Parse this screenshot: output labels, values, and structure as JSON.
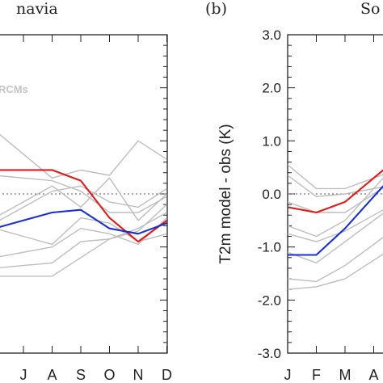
{
  "panel_a": {
    "title_fragment": "navia",
    "legend_fragment": "RCMs",
    "chart_data": {
      "type": "line",
      "title": "navia",
      "categories": [
        "J",
        "A",
        "S",
        "O",
        "N",
        "D"
      ],
      "ylim": [
        -3.0,
        3.0
      ],
      "reference_line": 0.0,
      "grid": false,
      "series": [
        {
          "name": "",
          "role": "obs-red",
          "color": "#dd1c1c",
          "values": [
            0.45,
            0.45,
            0.25,
            -0.45,
            -0.9,
            -0.5
          ]
        },
        {
          "name": "",
          "role": "obs-blue",
          "color": "#1a2fcf",
          "values": [
            -0.5,
            -0.35,
            -0.3,
            -0.65,
            -0.75,
            -0.55
          ]
        },
        {
          "name": "",
          "role": "rcm",
          "color": "#bdbdbd",
          "values": [
            0.75,
            0.3,
            0.45,
            0.35,
            1.0,
            0.65
          ]
        },
        {
          "name": "",
          "role": "rcm",
          "color": "#bdbdbd",
          "values": [
            -0.25,
            0.05,
            0.15,
            -0.15,
            -0.25,
            0.1
          ]
        },
        {
          "name": "",
          "role": "rcm",
          "color": "#bdbdbd",
          "values": [
            -1.35,
            -1.3,
            -0.9,
            -0.85,
            -0.7,
            -0.2
          ]
        },
        {
          "name": "",
          "role": "rcm",
          "color": "#bdbdbd",
          "values": [
            -0.8,
            -0.95,
            -0.45,
            -0.55,
            -0.9,
            -0.75
          ]
        },
        {
          "name": "",
          "role": "rcm",
          "color": "#bdbdbd",
          "values": [
            -1.55,
            -1.55,
            -1.2,
            -0.85,
            -0.65,
            -0.35
          ]
        },
        {
          "name": "",
          "role": "rcm",
          "color": "#bdbdbd",
          "values": [
            -0.15,
            0.15,
            -0.25,
            0.3,
            -0.5,
            0.0
          ]
        },
        {
          "name": "",
          "role": "rcm",
          "color": "#bdbdbd",
          "values": [
            -1.1,
            -1.0,
            -0.65,
            -0.75,
            -0.95,
            -0.45
          ]
        },
        {
          "name": "",
          "role": "rcm",
          "color": "#bdbdbd",
          "values": [
            0.3,
            0.25,
            0.05,
            -0.35,
            -0.35,
            -0.05
          ]
        }
      ]
    }
  },
  "panel_b": {
    "label": "(b)",
    "title_fragment": "So",
    "chart_data": {
      "type": "line",
      "title": "So",
      "ylabel": "T2m model - obs (K)",
      "categories": [
        "J",
        "F",
        "M",
        "A"
      ],
      "yticks": [
        "3.0",
        "2.0",
        "1.0",
        "0.0",
        "-1.0",
        "-2.0",
        "-3.0"
      ],
      "ylim": [
        -3.0,
        3.0
      ],
      "reference_line": 0.0,
      "grid": false,
      "series": [
        {
          "name": "",
          "role": "obs-red",
          "color": "#dd1c1c",
          "values": [
            -0.25,
            -0.35,
            -0.15,
            0.3
          ]
        },
        {
          "name": "",
          "role": "obs-blue",
          "color": "#1a2fcf",
          "values": [
            -1.15,
            -1.15,
            -0.65,
            -0.05
          ]
        },
        {
          "name": "",
          "role": "rcm",
          "color": "#bdbdbd",
          "values": [
            0.55,
            0.1,
            0.1,
            0.3
          ]
        },
        {
          "name": "",
          "role": "rcm",
          "color": "#bdbdbd",
          "values": [
            0.35,
            -0.05,
            0.0,
            0.1
          ]
        },
        {
          "name": "",
          "role": "rcm",
          "color": "#bdbdbd",
          "values": [
            -0.6,
            -0.8,
            -0.5,
            0.1
          ]
        },
        {
          "name": "",
          "role": "rcm",
          "color": "#bdbdbd",
          "values": [
            -0.75,
            -0.9,
            -0.7,
            -0.4
          ]
        },
        {
          "name": "",
          "role": "rcm",
          "color": "#bdbdbd",
          "values": [
            -1.1,
            -1.3,
            -0.9,
            -0.5
          ]
        },
        {
          "name": "",
          "role": "rcm",
          "color": "#bdbdbd",
          "values": [
            -1.6,
            -1.65,
            -1.35,
            -0.95
          ]
        },
        {
          "name": "",
          "role": "rcm",
          "color": "#bdbdbd",
          "values": [
            -1.8,
            -1.75,
            -1.6,
            -1.25
          ]
        },
        {
          "name": "",
          "role": "rcm",
          "color": "#bdbdbd",
          "values": [
            -0.15,
            -0.35,
            -0.35,
            0.0
          ]
        }
      ]
    }
  }
}
